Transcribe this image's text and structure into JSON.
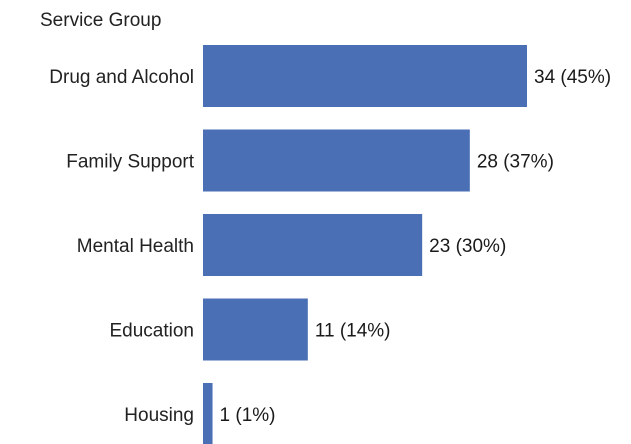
{
  "chart_data": {
    "type": "bar",
    "orientation": "horizontal",
    "title": "",
    "category_header": "Service Group",
    "categories": [
      "Drug and Alcohol",
      "Family Support",
      "Mental Health",
      "Education",
      "Housing"
    ],
    "values": [
      34,
      28,
      23,
      11,
      1
    ],
    "percents": [
      "45%",
      "37%",
      "30%",
      "14%",
      "1%"
    ],
    "data_labels": [
      "34 (45%)",
      "28 (37%)",
      "23 (30%)",
      "11 (14%)",
      "1 (1%)"
    ],
    "xlabel": "",
    "ylabel": "",
    "xlim": [
      0,
      34
    ],
    "grid": false,
    "legend": "none",
    "bar_color": "#4a6fb5"
  }
}
